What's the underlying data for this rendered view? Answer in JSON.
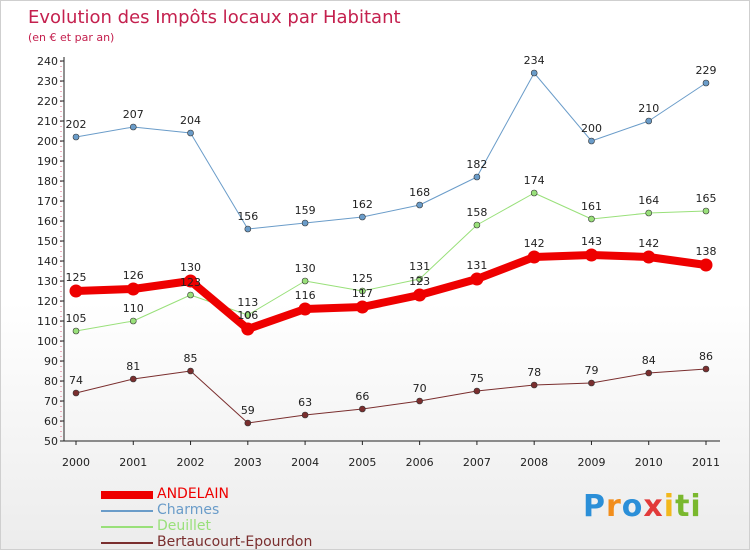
{
  "title": "Evolution des Impôts locaux par Habitant",
  "subtitle": "(en € et par an)",
  "logo": {
    "text": "Proxiti",
    "letters": [
      "P",
      "r",
      "o",
      "x",
      "i",
      "ti"
    ]
  },
  "chart_data": {
    "type": "line",
    "title": "Evolution des Impôts locaux par Habitant",
    "subtitle": "(en € et par an)",
    "xlabel": "",
    "ylabel": "",
    "categories": [
      "2000",
      "2001",
      "2002",
      "2003",
      "2004",
      "2005",
      "2006",
      "2007",
      "2008",
      "2009",
      "2010",
      "2011"
    ],
    "ylim": [
      50,
      240
    ],
    "yticks": [
      50,
      60,
      70,
      80,
      90,
      100,
      110,
      120,
      130,
      140,
      150,
      160,
      170,
      180,
      190,
      200,
      210,
      220,
      230,
      240
    ],
    "grid": false,
    "legend_position": "bottom-left",
    "series": [
      {
        "name": "ANDELAIN",
        "values": [
          125,
          126,
          130,
          106,
          116,
          117,
          123,
          131,
          142,
          143,
          142,
          138
        ],
        "color": "#ee0000",
        "emphasis": true
      },
      {
        "name": "Charmes",
        "values": [
          202,
          207,
          204,
          156,
          159,
          162,
          168,
          182,
          234,
          200,
          210,
          229
        ],
        "color": "#6a9cc9",
        "emphasis": false
      },
      {
        "name": "Deuillet",
        "values": [
          105,
          110,
          123,
          113,
          130,
          125,
          131,
          158,
          174,
          161,
          164,
          165
        ],
        "color": "#99e07a",
        "emphasis": false
      },
      {
        "name": "Bertaucourt-Epourdon",
        "values": [
          74,
          81,
          85,
          59,
          63,
          66,
          70,
          75,
          78,
          79,
          84,
          86
        ],
        "color": "#7a2e2e",
        "emphasis": false
      }
    ]
  }
}
